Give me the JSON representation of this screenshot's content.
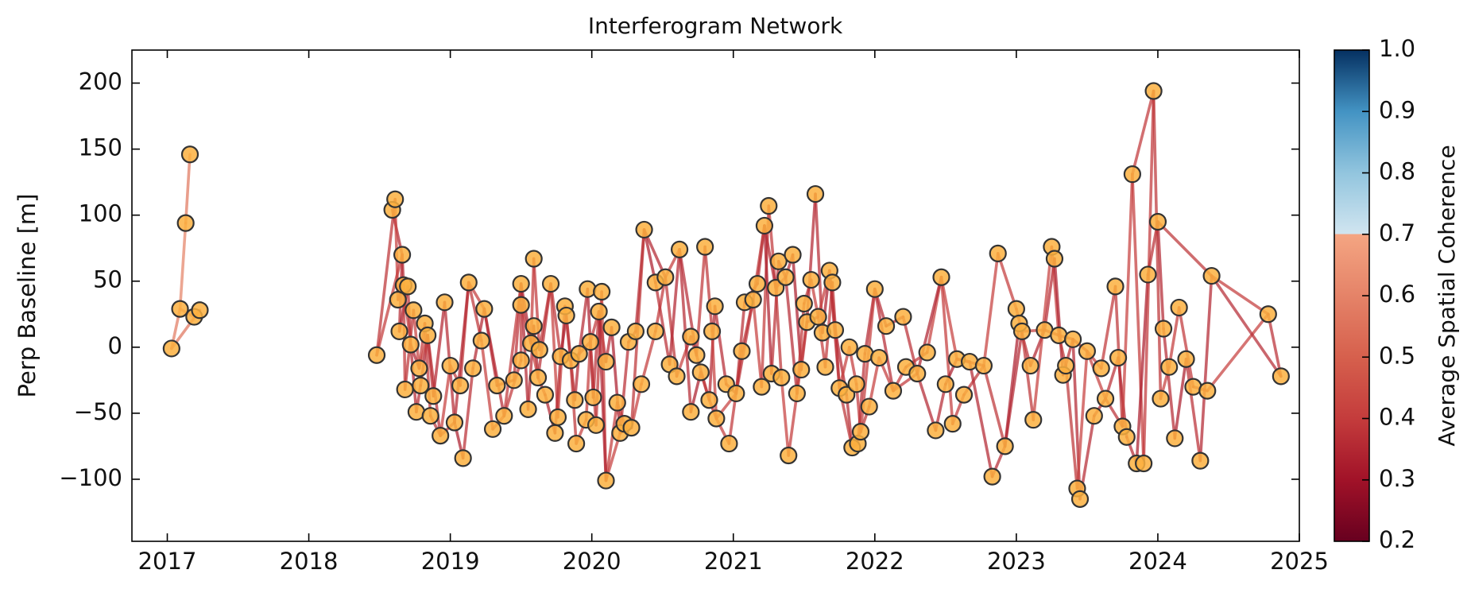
{
  "chart_data": {
    "type": "network",
    "title": "Interferogram Network",
    "y_label": "Perp Baseline [m]",
    "xlim": [
      2016.75,
      2025.0
    ],
    "xticks": [
      2017,
      2018,
      2019,
      2020,
      2021,
      2022,
      2023,
      2024,
      2025
    ],
    "ylim": [
      -147,
      225
    ],
    "yticks": [
      {
        "value": -100,
        "label": "−100"
      },
      {
        "value": -50,
        "label": "−50"
      },
      0,
      50,
      100,
      150,
      200
    ],
    "point_color": "#fbb040",
    "point_edge_color": "#333333",
    "x": [
      2017.03,
      2017.09,
      2017.13,
      2017.16,
      2017.19,
      2017.23,
      2018.48,
      2018.59,
      2018.61,
      2018.66,
      2018.63,
      2018.64,
      2018.67,
      2018.7,
      2018.68,
      2018.72,
      2018.74,
      2018.76,
      2018.78,
      2018.79,
      2018.82,
      2018.84,
      2018.86,
      2018.88,
      2018.93,
      2018.96,
      2019.0,
      2019.03,
      2019.07,
      2019.09,
      2019.13,
      2019.16,
      2019.22,
      2019.24,
      2019.3,
      2019.33,
      2019.38,
      2019.45,
      2019.5,
      2019.5,
      2019.5,
      2019.55,
      2019.57,
      2019.59,
      2019.59,
      2019.62,
      2019.63,
      2019.67,
      2019.71,
      2019.74,
      2019.76,
      2019.78,
      2019.81,
      2019.82,
      2019.85,
      2019.88,
      2019.89,
      2019.91,
      2019.96,
      2019.97,
      2019.99,
      2020.01,
      2020.03,
      2020.05,
      2020.07,
      2020.1,
      2020.1,
      2020.14,
      2020.18,
      2020.2,
      2020.23,
      2020.26,
      2020.28,
      2020.31,
      2020.35,
      2020.37,
      2020.45,
      2020.45,
      2020.52,
      2020.55,
      2020.6,
      2020.62,
      2020.7,
      2020.7,
      2020.74,
      2020.77,
      2020.8,
      2020.83,
      2020.85,
      2020.87,
      2020.88,
      2020.95,
      2020.97,
      2021.02,
      2021.06,
      2021.08,
      2021.14,
      2021.17,
      2021.2,
      2021.22,
      2021.25,
      2021.27,
      2021.3,
      2021.32,
      2021.34,
      2021.37,
      2021.39,
      2021.42,
      2021.45,
      2021.48,
      2021.5,
      2021.52,
      2021.55,
      2021.58,
      2021.6,
      2021.63,
      2021.65,
      2021.68,
      2021.7,
      2021.72,
      2021.75,
      2021.8,
      2021.82,
      2021.84,
      2021.87,
      2021.88,
      2021.9,
      2021.93,
      2021.96,
      2022.0,
      2022.03,
      2022.08,
      2022.13,
      2022.2,
      2022.22,
      2022.3,
      2022.37,
      2022.43,
      2022.47,
      2022.5,
      2022.55,
      2022.58,
      2022.63,
      2022.67,
      2022.77,
      2022.83,
      2022.87,
      2022.92,
      2023.0,
      2023.02,
      2023.04,
      2023.1,
      2023.12,
      2023.2,
      2023.25,
      2023.27,
      2023.3,
      2023.33,
      2023.35,
      2023.4,
      2023.43,
      2023.45,
      2023.5,
      2023.55,
      2023.6,
      2023.63,
      2023.7,
      2023.72,
      2023.75,
      2023.78,
      2023.82,
      2023.85,
      2023.9,
      2023.93,
      2023.97,
      2024.0,
      2024.02,
      2024.04,
      2024.08,
      2024.12,
      2024.15,
      2024.2,
      2024.25,
      2024.3,
      2024.35,
      2024.38,
      2024.78,
      2024.87
    ],
    "values": [
      -1,
      29,
      94,
      146,
      23,
      28,
      -6,
      104,
      112,
      70,
      36,
      12,
      47,
      46,
      -32,
      2,
      28,
      -49,
      -16,
      -29,
      18,
      9,
      -52,
      -37,
      -67,
      34,
      -14,
      -57,
      -29,
      -84,
      49,
      -16,
      5,
      29,
      -62,
      -29,
      -52,
      -25,
      -10,
      48,
      32,
      -47,
      3,
      16,
      67,
      -23,
      -2,
      -36,
      48,
      -65,
      -53,
      -7,
      31,
      24,
      -10,
      -40,
      -73,
      -5,
      -55,
      44,
      4,
      -38,
      -59,
      27,
      42,
      -11,
      -101,
      15,
      -42,
      -65,
      -58,
      4,
      -61,
      12,
      -28,
      89,
      12,
      49,
      53,
      -13,
      -22,
      74,
      8,
      -49,
      -6,
      -19,
      76,
      -40,
      12,
      31,
      -54,
      -28,
      -73,
      -35,
      -3,
      34,
      36,
      48,
      -30,
      92,
      107,
      -20,
      45,
      65,
      -23,
      53,
      -82,
      70,
      -35,
      -17,
      33,
      19,
      51,
      116,
      23,
      11,
      -15,
      58,
      49,
      13,
      -31,
      -36,
      0,
      -76,
      -28,
      -73,
      -64,
      -5,
      -45,
      44,
      -8,
      16,
      -33,
      23,
      -15,
      -20,
      -4,
      -63,
      53,
      -28,
      -58,
      -9,
      -36,
      -11,
      -14,
      -98,
      71,
      -75,
      29,
      18,
      12,
      -14,
      -55,
      13,
      76,
      67,
      9,
      -21,
      -14,
      6,
      -107,
      -115,
      -3,
      -52,
      -16,
      -39,
      46,
      -8,
      -60,
      -68,
      131,
      -88,
      -88,
      55,
      194,
      95,
      -39,
      14,
      -15,
      -69,
      30,
      -9,
      -30,
      -86,
      -33,
      54,
      25,
      -22
    ],
    "edges": [
      [
        0,
        1,
        0.58
      ],
      [
        1,
        2,
        0.6
      ],
      [
        2,
        3,
        0.57
      ],
      [
        0,
        5,
        0.56
      ],
      [
        1,
        4,
        0.59
      ],
      [
        4,
        5,
        0.58
      ],
      [
        6,
        8,
        0.38
      ],
      [
        7,
        9,
        0.35
      ],
      [
        8,
        10,
        0.41
      ],
      [
        9,
        11,
        0.36
      ],
      [
        10,
        12,
        0.4
      ],
      [
        11,
        13,
        0.33
      ],
      [
        12,
        14,
        0.39
      ],
      [
        13,
        15,
        0.37
      ],
      [
        14,
        16,
        0.38
      ],
      [
        15,
        17,
        0.35
      ],
      [
        16,
        18,
        0.41
      ],
      [
        17,
        19,
        0.36
      ],
      [
        18,
        20,
        0.4
      ],
      [
        19,
        21,
        0.33
      ],
      [
        20,
        22,
        0.39
      ],
      [
        21,
        23,
        0.37
      ],
      [
        22,
        24,
        0.38
      ],
      [
        23,
        25,
        0.35
      ],
      [
        24,
        26,
        0.41
      ],
      [
        25,
        27,
        0.36
      ],
      [
        26,
        28,
        0.4
      ],
      [
        27,
        29,
        0.33
      ],
      [
        28,
        30,
        0.39
      ],
      [
        29,
        31,
        0.37
      ],
      [
        30,
        32,
        0.38
      ],
      [
        31,
        33,
        0.35
      ],
      [
        32,
        34,
        0.41
      ],
      [
        33,
        35,
        0.36
      ],
      [
        34,
        36,
        0.4
      ],
      [
        35,
        37,
        0.33
      ],
      [
        36,
        38,
        0.39
      ],
      [
        37,
        39,
        0.37
      ],
      [
        38,
        40,
        0.38
      ],
      [
        39,
        41,
        0.35
      ],
      [
        40,
        42,
        0.41
      ],
      [
        41,
        43,
        0.36
      ],
      [
        42,
        44,
        0.4
      ],
      [
        43,
        45,
        0.33
      ],
      [
        44,
        46,
        0.39
      ],
      [
        45,
        47,
        0.37
      ],
      [
        46,
        48,
        0.38
      ],
      [
        47,
        49,
        0.35
      ],
      [
        48,
        50,
        0.41
      ],
      [
        49,
        51,
        0.36
      ],
      [
        50,
        52,
        0.4
      ],
      [
        51,
        53,
        0.33
      ],
      [
        52,
        54,
        0.39
      ],
      [
        53,
        55,
        0.37
      ],
      [
        54,
        56,
        0.38
      ],
      [
        55,
        57,
        0.35
      ],
      [
        56,
        58,
        0.41
      ],
      [
        57,
        59,
        0.36
      ],
      [
        58,
        60,
        0.4
      ],
      [
        59,
        61,
        0.33
      ],
      [
        60,
        62,
        0.39
      ],
      [
        61,
        63,
        0.37
      ],
      [
        62,
        64,
        0.38
      ],
      [
        63,
        65,
        0.35
      ],
      [
        64,
        66,
        0.41
      ],
      [
        65,
        67,
        0.36
      ],
      [
        66,
        68,
        0.4
      ],
      [
        67,
        69,
        0.33
      ],
      [
        68,
        70,
        0.39
      ],
      [
        69,
        71,
        0.37
      ],
      [
        70,
        72,
        0.38
      ],
      [
        71,
        73,
        0.35
      ],
      [
        72,
        74,
        0.41
      ],
      [
        73,
        75,
        0.36
      ],
      [
        74,
        76,
        0.4
      ],
      [
        75,
        77,
        0.33
      ],
      [
        76,
        78,
        0.39
      ],
      [
        77,
        79,
        0.37
      ],
      [
        78,
        80,
        0.38
      ],
      [
        79,
        81,
        0.35
      ],
      [
        80,
        82,
        0.41
      ],
      [
        81,
        83,
        0.36
      ],
      [
        82,
        84,
        0.4
      ],
      [
        83,
        85,
        0.33
      ],
      [
        84,
        86,
        0.39
      ],
      [
        85,
        87,
        0.37
      ],
      [
        86,
        88,
        0.38
      ],
      [
        87,
        89,
        0.35
      ],
      [
        88,
        90,
        0.41
      ],
      [
        89,
        91,
        0.36
      ],
      [
        90,
        92,
        0.4
      ],
      [
        91,
        93,
        0.33
      ],
      [
        92,
        94,
        0.39
      ],
      [
        93,
        95,
        0.37
      ],
      [
        94,
        96,
        0.38
      ],
      [
        95,
        97,
        0.35
      ],
      [
        96,
        98,
        0.41
      ],
      [
        97,
        99,
        0.36
      ],
      [
        98,
        100,
        0.4
      ],
      [
        99,
        101,
        0.33
      ],
      [
        100,
        102,
        0.39
      ],
      [
        101,
        103,
        0.37
      ],
      [
        102,
        104,
        0.38
      ],
      [
        103,
        105,
        0.35
      ],
      [
        104,
        106,
        0.41
      ],
      [
        105,
        107,
        0.36
      ],
      [
        106,
        108,
        0.4
      ],
      [
        107,
        109,
        0.33
      ],
      [
        108,
        110,
        0.39
      ],
      [
        109,
        111,
        0.37
      ],
      [
        110,
        112,
        0.38
      ],
      [
        111,
        113,
        0.35
      ],
      [
        112,
        114,
        0.41
      ],
      [
        113,
        115,
        0.36
      ],
      [
        114,
        116,
        0.4
      ],
      [
        115,
        117,
        0.33
      ],
      [
        116,
        118,
        0.39
      ],
      [
        117,
        119,
        0.37
      ],
      [
        118,
        120,
        0.38
      ],
      [
        119,
        121,
        0.35
      ],
      [
        120,
        122,
        0.41
      ],
      [
        121,
        123,
        0.36
      ],
      [
        122,
        124,
        0.4
      ],
      [
        123,
        125,
        0.33
      ],
      [
        124,
        126,
        0.39
      ],
      [
        125,
        127,
        0.37
      ],
      [
        126,
        128,
        0.38
      ],
      [
        127,
        129,
        0.35
      ],
      [
        128,
        130,
        0.41
      ],
      [
        129,
        131,
        0.36
      ],
      [
        130,
        132,
        0.4
      ],
      [
        131,
        133,
        0.33
      ],
      [
        132,
        134,
        0.39
      ],
      [
        133,
        135,
        0.37
      ],
      [
        134,
        136,
        0.38
      ],
      [
        135,
        137,
        0.35
      ],
      [
        136,
        138,
        0.41
      ],
      [
        137,
        139,
        0.36
      ],
      [
        138,
        140,
        0.4
      ],
      [
        139,
        141,
        0.33
      ],
      [
        140,
        142,
        0.39
      ],
      [
        141,
        143,
        0.37
      ],
      [
        142,
        144,
        0.38
      ],
      [
        143,
        145,
        0.35
      ],
      [
        144,
        146,
        0.41
      ],
      [
        145,
        147,
        0.36
      ],
      [
        146,
        148,
        0.4
      ],
      [
        147,
        149,
        0.33
      ],
      [
        148,
        150,
        0.39
      ],
      [
        149,
        151,
        0.37
      ],
      [
        150,
        152,
        0.38
      ],
      [
        151,
        153,
        0.35
      ],
      [
        152,
        154,
        0.41
      ],
      [
        153,
        155,
        0.36
      ],
      [
        154,
        156,
        0.4
      ],
      [
        155,
        157,
        0.33
      ],
      [
        156,
        158,
        0.39
      ],
      [
        157,
        159,
        0.37
      ],
      [
        158,
        160,
        0.38
      ],
      [
        159,
        161,
        0.35
      ],
      [
        160,
        162,
        0.41
      ],
      [
        161,
        163,
        0.36
      ],
      [
        162,
        164,
        0.4
      ],
      [
        163,
        165,
        0.33
      ],
      [
        164,
        166,
        0.39
      ],
      [
        165,
        167,
        0.37
      ],
      [
        166,
        168,
        0.38
      ],
      [
        167,
        169,
        0.35
      ],
      [
        168,
        170,
        0.41
      ],
      [
        169,
        171,
        0.36
      ],
      [
        170,
        172,
        0.4
      ],
      [
        171,
        173,
        0.33
      ],
      [
        172,
        174,
        0.39
      ],
      [
        173,
        175,
        0.37
      ],
      [
        174,
        176,
        0.38
      ],
      [
        175,
        177,
        0.35
      ],
      [
        176,
        178,
        0.41
      ],
      [
        177,
        179,
        0.36
      ],
      [
        178,
        180,
        0.4
      ],
      [
        179,
        181,
        0.33
      ],
      [
        180,
        182,
        0.39
      ],
      [
        181,
        183,
        0.37
      ],
      [
        182,
        184,
        0.38
      ],
      [
        183,
        185,
        0.35
      ],
      [
        184,
        186,
        0.41
      ],
      [
        185,
        187,
        0.36
      ],
      [
        6,
        9,
        0.4
      ],
      [
        9,
        12,
        0.36
      ],
      [
        12,
        15,
        0.39
      ],
      [
        15,
        18,
        0.34
      ],
      [
        18,
        21,
        0.41
      ],
      [
        21,
        24,
        0.37
      ],
      [
        24,
        27,
        0.38
      ],
      [
        27,
        30,
        0.35
      ],
      [
        30,
        33,
        0.4
      ],
      [
        33,
        36,
        0.36
      ],
      [
        36,
        39,
        0.39
      ],
      [
        39,
        42,
        0.34
      ],
      [
        42,
        45,
        0.41
      ],
      [
        45,
        48,
        0.37
      ],
      [
        48,
        51,
        0.38
      ],
      [
        51,
        54,
        0.35
      ],
      [
        54,
        57,
        0.4
      ],
      [
        57,
        60,
        0.36
      ],
      [
        60,
        63,
        0.39
      ],
      [
        63,
        66,
        0.34
      ],
      [
        66,
        69,
        0.41
      ],
      [
        69,
        72,
        0.37
      ],
      [
        72,
        75,
        0.38
      ],
      [
        75,
        78,
        0.35
      ],
      [
        78,
        81,
        0.4
      ],
      [
        81,
        84,
        0.36
      ],
      [
        84,
        87,
        0.39
      ],
      [
        87,
        90,
        0.34
      ],
      [
        90,
        93,
        0.41
      ],
      [
        93,
        96,
        0.37
      ],
      [
        96,
        99,
        0.38
      ],
      [
        99,
        102,
        0.35
      ],
      [
        102,
        105,
        0.4
      ],
      [
        105,
        108,
        0.36
      ],
      [
        108,
        111,
        0.39
      ],
      [
        111,
        114,
        0.34
      ],
      [
        114,
        117,
        0.41
      ],
      [
        117,
        120,
        0.37
      ],
      [
        120,
        123,
        0.38
      ],
      [
        123,
        126,
        0.35
      ],
      [
        126,
        129,
        0.4
      ],
      [
        129,
        132,
        0.36
      ],
      [
        132,
        135,
        0.39
      ],
      [
        135,
        138,
        0.34
      ],
      [
        138,
        141,
        0.41
      ],
      [
        141,
        144,
        0.37
      ],
      [
        144,
        147,
        0.38
      ],
      [
        147,
        150,
        0.35
      ],
      [
        150,
        153,
        0.4
      ],
      [
        153,
        156,
        0.36
      ],
      [
        156,
        159,
        0.39
      ],
      [
        159,
        162,
        0.34
      ],
      [
        162,
        165,
        0.41
      ],
      [
        165,
        168,
        0.37
      ],
      [
        170,
        174,
        0.39
      ],
      [
        175,
        185,
        0.38
      ],
      [
        185,
        186,
        0.4
      ],
      [
        186,
        187,
        0.37
      ]
    ],
    "colorbar": {
      "label": "Average Spatial Coherence",
      "ylim": [
        0.2,
        1.0
      ],
      "yticks": [
        0.2,
        0.3,
        0.4,
        0.5,
        0.6,
        0.7,
        0.8,
        0.9,
        {
          "value": 1.0,
          "label": "1.0"
        }
      ],
      "colormap": [
        {
          "value": 0.2,
          "color": "#67001f"
        },
        {
          "value": 0.3,
          "color": "#a11228"
        },
        {
          "value": 0.4,
          "color": "#c43c3c"
        },
        {
          "value": 0.5,
          "color": "#d6604d"
        },
        {
          "value": 0.6,
          "color": "#e58368"
        },
        {
          "value": 0.7,
          "color": "#f4a582"
        },
        {
          "value": 0.7,
          "color": "#d1e5f0"
        },
        {
          "value": 0.8,
          "color": "#92c5de"
        },
        {
          "value": 0.9,
          "color": "#4393c3"
        },
        {
          "value": 1.0,
          "color": "#053061"
        }
      ]
    }
  }
}
